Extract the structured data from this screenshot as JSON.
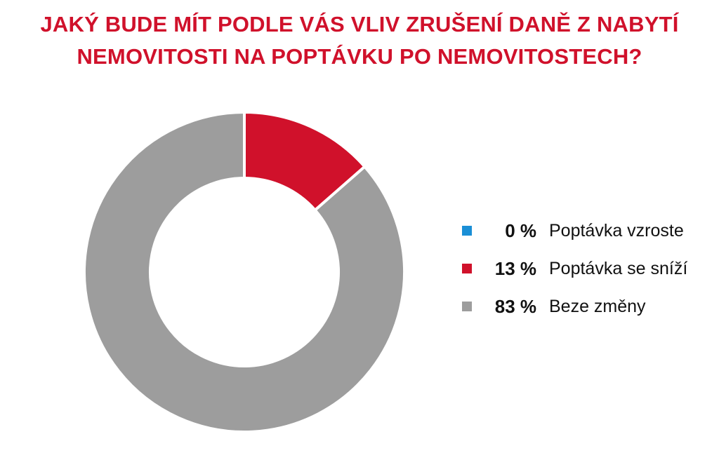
{
  "chart_data": {
    "type": "pie",
    "title_lines": [
      "JAKÝ BUDE MÍT PODLE VÁS VLIV ZRUŠENÍ DANĚ Z NABYTÍ",
      "NEMOVITOSTI NA POPTÁVKU PO NEMOVITOSTECH?"
    ],
    "donut": true,
    "legend_position": "right",
    "slices": [
      {
        "label": "Poptávka vzroste",
        "value": 0,
        "value_label": "0 %",
        "color": "#1a8fd6"
      },
      {
        "label": "Poptávka se sníží",
        "value": 13,
        "value_label": "13 %",
        "color": "#d0112b"
      },
      {
        "label": "Beze změny",
        "value": 83,
        "value_label": "83 %",
        "color": "#9d9d9d"
      }
    ]
  }
}
